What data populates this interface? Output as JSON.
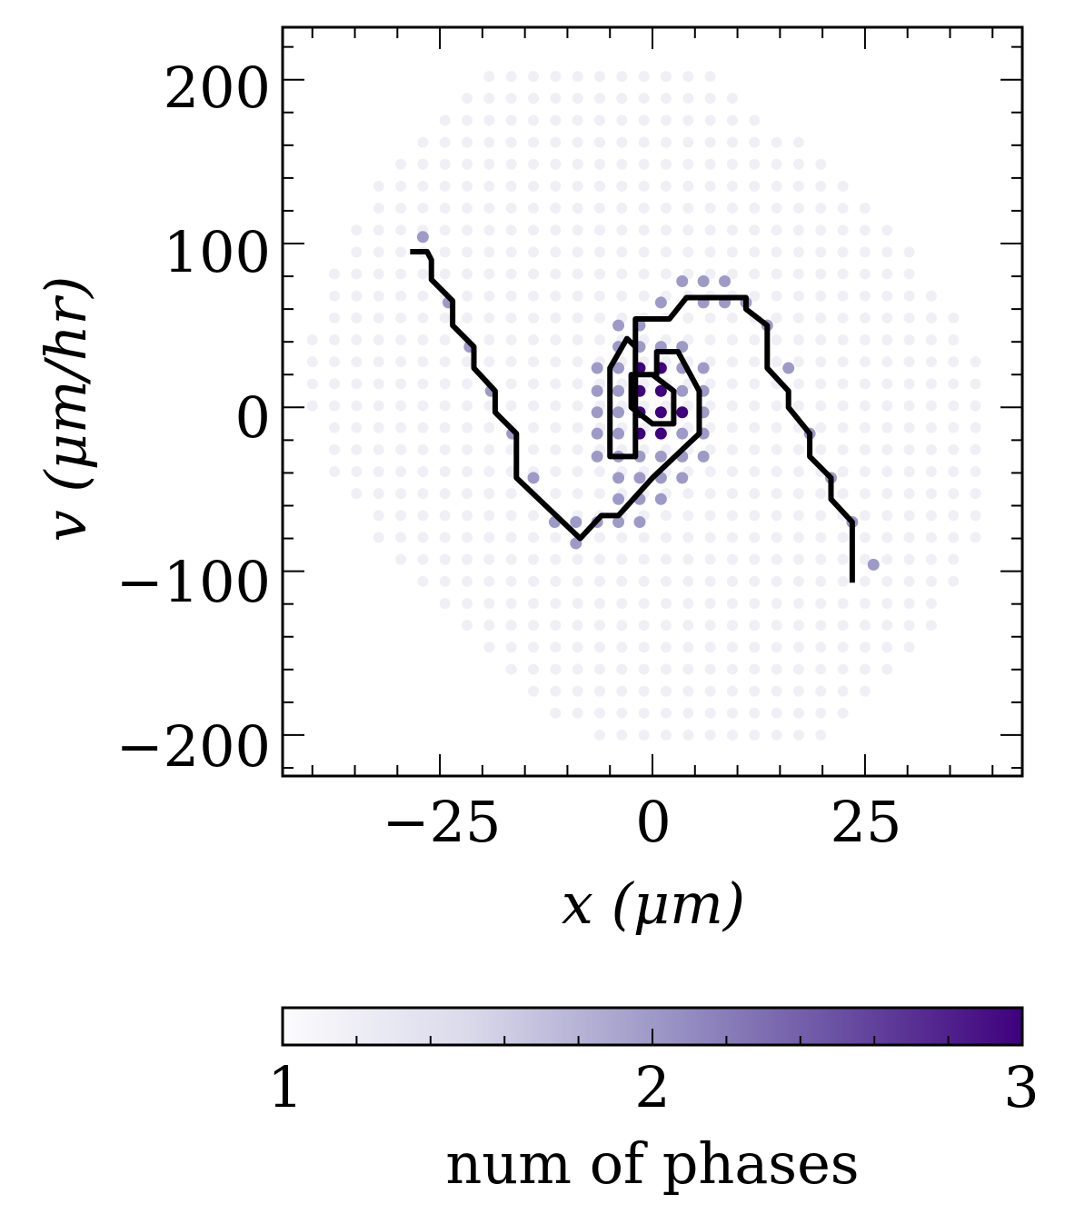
{
  "chart_data": {
    "type": "scatter",
    "xlabel": "x (μm)",
    "ylabel": "v (μm/hr)",
    "xlim": [
      -43.5,
      43.5
    ],
    "ylim": [
      -225,
      232
    ],
    "x_ticks": [
      -25,
      0,
      25
    ],
    "x_tick_labels": [
      "−25",
      "0",
      "25"
    ],
    "y_ticks": [
      -200,
      -100,
      0,
      100,
      200
    ],
    "y_tick_labels": [
      "−200",
      "−100",
      "0",
      "100",
      "200"
    ],
    "colorbar": {
      "label": "num of phases",
      "min": 1,
      "max": 3,
      "ticks": [
        1,
        2,
        3
      ],
      "tick_labels": [
        "1",
        "2",
        "3"
      ],
      "colormap": "Purples",
      "colors": [
        "#fcfbfd",
        "#dadaeb",
        "#9e9ac8",
        "#6a51a3",
        "#3f007d"
      ]
    },
    "grid_points": {
      "description": "phase-space sampling grid",
      "x_step": 2.6,
      "v_step": 13.4,
      "level_1_value": 1
    },
    "phase_points": [
      {
        "x": -27,
        "v": 104,
        "n": 2
      },
      {
        "x": -24,
        "v": 64,
        "n": 2
      },
      {
        "x": -21.5,
        "v": 37,
        "n": 2
      },
      {
        "x": -19,
        "v": 10,
        "n": 2
      },
      {
        "x": -16.5,
        "v": -16,
        "n": 2
      },
      {
        "x": -14,
        "v": -43,
        "n": 2
      },
      {
        "x": -11.5,
        "v": -70,
        "n": 2
      },
      {
        "x": -9,
        "v": -70,
        "n": 2
      },
      {
        "x": -9,
        "v": -83,
        "n": 2
      },
      {
        "x": -6.5,
        "v": -70,
        "n": 2
      },
      {
        "x": -4,
        "v": -70,
        "n": 2
      },
      {
        "x": -1.5,
        "v": -70,
        "n": 2
      },
      {
        "x": -4,
        "v": -56,
        "n": 2
      },
      {
        "x": -1.5,
        "v": -56,
        "n": 2
      },
      {
        "x": 1,
        "v": -56,
        "n": 2
      },
      {
        "x": -4,
        "v": -43,
        "n": 2
      },
      {
        "x": -1.5,
        "v": -43,
        "n": 2
      },
      {
        "x": 1,
        "v": -43,
        "n": 2
      },
      {
        "x": 3.5,
        "v": -43,
        "n": 2
      },
      {
        "x": -6.5,
        "v": -30,
        "n": 2
      },
      {
        "x": -4,
        "v": -30,
        "n": 2
      },
      {
        "x": -1.5,
        "v": -30,
        "n": 2
      },
      {
        "x": 1,
        "v": -30,
        "n": 2
      },
      {
        "x": 3.5,
        "v": -30,
        "n": 2
      },
      {
        "x": 6,
        "v": -30,
        "n": 2
      },
      {
        "x": -6.5,
        "v": -16,
        "n": 2
      },
      {
        "x": -4,
        "v": -16,
        "n": 2
      },
      {
        "x": -1.5,
        "v": -16,
        "n": 3
      },
      {
        "x": 1,
        "v": -16,
        "n": 3
      },
      {
        "x": 3.5,
        "v": -16,
        "n": 2
      },
      {
        "x": 6,
        "v": -16,
        "n": 2
      },
      {
        "x": -6.5,
        "v": -3,
        "n": 2
      },
      {
        "x": -4,
        "v": -3,
        "n": 2
      },
      {
        "x": -1.5,
        "v": -3,
        "n": 3
      },
      {
        "x": 1,
        "v": -3,
        "n": 3
      },
      {
        "x": 3.5,
        "v": -3,
        "n": 3
      },
      {
        "x": 6,
        "v": -3,
        "n": 2
      },
      {
        "x": -6.5,
        "v": 10,
        "n": 2
      },
      {
        "x": -4,
        "v": 10,
        "n": 2
      },
      {
        "x": -1.5,
        "v": 10,
        "n": 3
      },
      {
        "x": 1,
        "v": 10,
        "n": 3
      },
      {
        "x": 3.5,
        "v": 10,
        "n": 2
      },
      {
        "x": 6,
        "v": 10,
        "n": 2
      },
      {
        "x": -6.5,
        "v": 24,
        "n": 2
      },
      {
        "x": -4,
        "v": 24,
        "n": 2
      },
      {
        "x": -1.5,
        "v": 24,
        "n": 3
      },
      {
        "x": 1,
        "v": 24,
        "n": 3
      },
      {
        "x": 3.5,
        "v": 24,
        "n": 2
      },
      {
        "x": 6,
        "v": 24,
        "n": 2
      },
      {
        "x": -4,
        "v": 37,
        "n": 2
      },
      {
        "x": -1.5,
        "v": 37,
        "n": 2
      },
      {
        "x": 1,
        "v": 37,
        "n": 2
      },
      {
        "x": 3.5,
        "v": 37,
        "n": 2
      },
      {
        "x": -4,
        "v": 50,
        "n": 2
      },
      {
        "x": -1.5,
        "v": 50,
        "n": 2
      },
      {
        "x": 1,
        "v": 64,
        "n": 2
      },
      {
        "x": 3.5,
        "v": 77,
        "n": 2
      },
      {
        "x": 6,
        "v": 77,
        "n": 2
      },
      {
        "x": 6,
        "v": 64,
        "n": 2
      },
      {
        "x": 8.5,
        "v": 77,
        "n": 2
      },
      {
        "x": 8.5,
        "v": 64,
        "n": 2
      },
      {
        "x": 11,
        "v": 64,
        "n": 2
      },
      {
        "x": 13.5,
        "v": 50,
        "n": 2
      },
      {
        "x": 16,
        "v": 24,
        "n": 2
      },
      {
        "x": 18.5,
        "v": -16,
        "n": 2
      },
      {
        "x": 21,
        "v": -43,
        "n": 2
      },
      {
        "x": 23.5,
        "v": -70,
        "n": 2
      },
      {
        "x": 26,
        "v": -96,
        "n": 2
      }
    ],
    "trajectory": {
      "name": "trajectory",
      "color": "#000000",
      "x": [
        -28.5,
        -26.5,
        -26,
        -26,
        -23.5,
        -23.5,
        -21,
        -21,
        -18.5,
        -18.5,
        -16,
        -16,
        -16,
        -8.5,
        -6,
        -4,
        0,
        5.5,
        5.5,
        3,
        0.5,
        0.5,
        -2.5,
        -2.5,
        0,
        2.5,
        2.5,
        0,
        -2,
        -2,
        -3,
        -5,
        -5,
        -2,
        -2,
        2,
        4,
        11,
        11,
        13.5,
        13.5,
        16,
        16,
        18.5,
        18.5,
        21,
        21,
        23.5,
        23.5,
        23.5
      ],
      "v": [
        95,
        95,
        90,
        78,
        65,
        50,
        37,
        24,
        10,
        -3,
        -16,
        -30,
        -43,
        -80,
        -66,
        -66,
        -43,
        -16,
        10,
        34,
        34,
        20,
        20,
        0,
        -10,
        -10,
        10,
        20,
        20,
        37,
        42,
        24,
        -30,
        -30,
        54,
        54,
        67,
        67,
        60,
        50,
        24,
        10,
        0,
        -16,
        -30,
        -43,
        -56,
        -70,
        -90,
        -107
      ]
    }
  }
}
